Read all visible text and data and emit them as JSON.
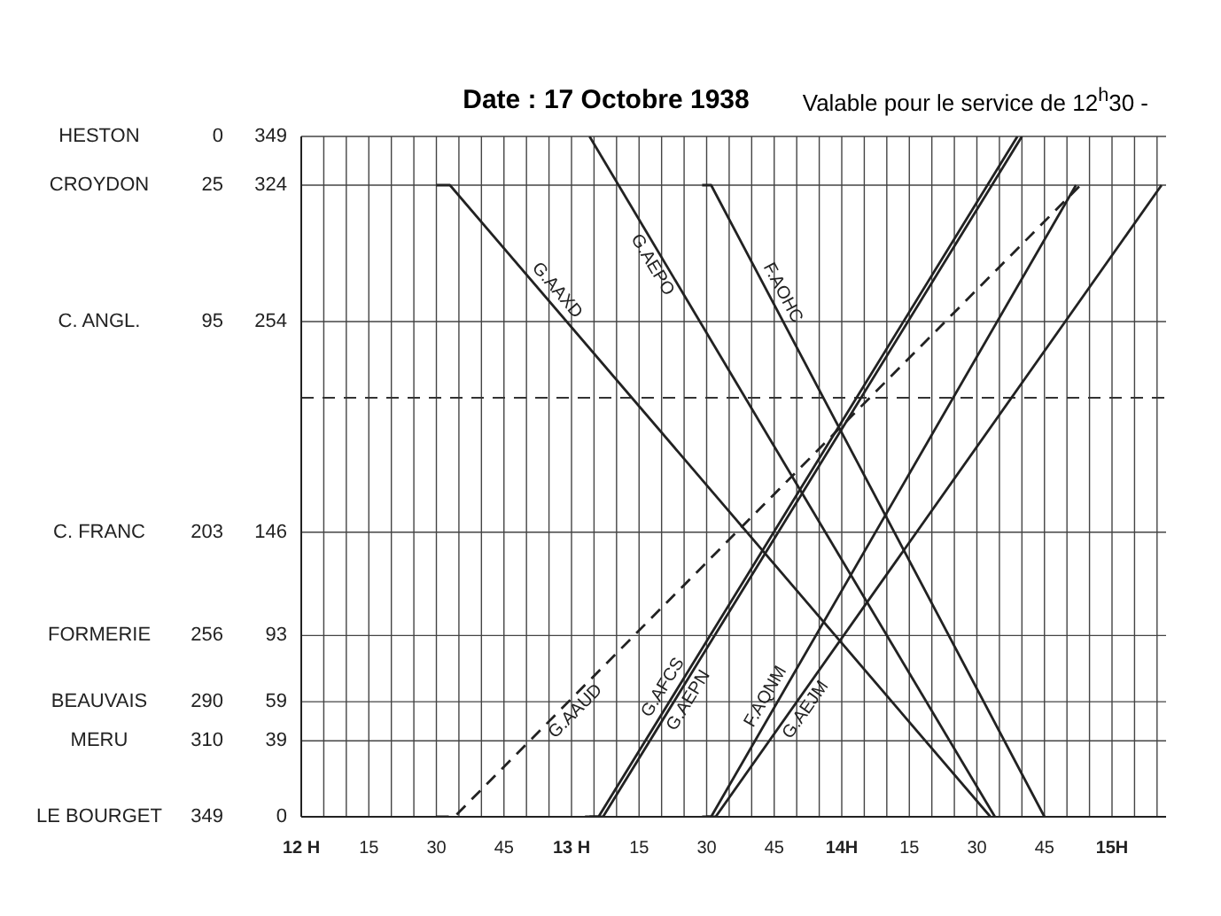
{
  "chart_data": {
    "type": "line",
    "title": "Date : 17 Octobre 1938",
    "subtitle": "Valable pour le service de 12$^{h}$30 -",
    "xlim": [
      "1938-10-17T12:00",
      "1938-10-17T15:12"
    ],
    "xticks": [
      {
        "value": "1938-10-17T12:00",
        "label": "12 H"
      },
      {
        "value": "1938-10-17T12:05",
        "label": null
      },
      {
        "value": "1938-10-17T12:10",
        "label": null
      },
      {
        "value": "1938-10-17T12:15",
        "label": "15"
      },
      {
        "value": "1938-10-17T12:20",
        "label": null
      },
      {
        "value": "1938-10-17T12:25",
        "label": null
      },
      {
        "value": "1938-10-17T12:30",
        "label": "30"
      },
      {
        "value": "1938-10-17T12:35",
        "label": null
      },
      {
        "value": "1938-10-17T12:40",
        "label": null
      },
      {
        "value": "1938-10-17T12:45",
        "label": "45"
      },
      {
        "value": "1938-10-17T12:50",
        "label": null
      },
      {
        "value": "1938-10-17T12:55",
        "label": null
      },
      {
        "value": "1938-10-17T13:00",
        "label": "13 H"
      },
      {
        "value": "1938-10-17T13:05",
        "label": null
      },
      {
        "value": "1938-10-17T13:10",
        "label": null
      },
      {
        "value": "1938-10-17T13:15",
        "label": "15"
      },
      {
        "value": "1938-10-17T13:20",
        "label": null
      },
      {
        "value": "1938-10-17T13:25",
        "label": null
      },
      {
        "value": "1938-10-17T13:30",
        "label": "30"
      },
      {
        "value": "1938-10-17T13:35",
        "label": null
      },
      {
        "value": "1938-10-17T13:40",
        "label": null
      },
      {
        "value": "1938-10-17T13:45",
        "label": "45"
      },
      {
        "value": "1938-10-17T13:50",
        "label": null
      },
      {
        "value": "1938-10-17T13:55",
        "label": null
      },
      {
        "value": "1938-10-17T14:00",
        "label": "14H"
      },
      {
        "value": "1938-10-17T14:05",
        "label": null
      },
      {
        "value": "1938-10-17T14:10",
        "label": null
      },
      {
        "value": "1938-10-17T14:15",
        "label": "15"
      },
      {
        "value": "1938-10-17T14:20",
        "label": null
      },
      {
        "value": "1938-10-17T14:25",
        "label": null
      },
      {
        "value": "1938-10-17T14:30",
        "label": "30"
      },
      {
        "value": "1938-10-17T14:35",
        "label": null
      },
      {
        "value": "1938-10-17T14:40",
        "label": null
      },
      {
        "value": "1938-10-17T14:45",
        "label": "45"
      },
      {
        "value": "1938-10-17T14:50",
        "label": null
      },
      {
        "value": "1938-10-17T14:55",
        "label": null
      },
      {
        "value": "1938-10-17T15:00",
        "label": "15H"
      },
      {
        "value": "1938-10-17T15:05",
        "label": null
      },
      {
        "value": "1938-10-17T15:10",
        "label": null
      }
    ],
    "ylim": [
      0,
      349
    ],
    "yticks": [
      0,
      39,
      59,
      93,
      146,
      254,
      324,
      349
    ],
    "y2lim": [
      349,
      0
    ],
    "y2ticks": [
      0,
      25,
      95,
      203,
      256,
      290,
      310,
      349
    ],
    "grid": true,
    "marker": "none",
    "annotations": [
      "HESTON",
      "CROYDON",
      "C. ANGL.",
      "C. FRANC",
      "FORMERIE",
      "BEAUVAIS",
      "MERU",
      "LE BOURGET"
    ],
    "ref_lines": [
      {
        "axis": "y",
        "value": 215,
        "label": null,
        "line_style": "dashed"
      }
    ],
    "series": [
      {
        "name": "G.AAXD",
        "color": "#222222",
        "x": [
          "1938-10-17T12:30",
          "1938-10-17T12:33",
          "1938-10-17T14:33"
        ],
        "values": [
          324,
          324,
          0
        ]
      },
      {
        "name": "G.AEPO",
        "color": "#222222",
        "x": [
          "1938-10-17T13:04",
          "1938-10-17T14:34"
        ],
        "values": [
          349,
          0
        ]
      },
      {
        "name": "F.AOHC",
        "color": "#222222",
        "x": [
          "1938-10-17T13:29",
          "1938-10-17T13:31",
          "1938-10-17T14:45"
        ],
        "values": [
          324,
          324,
          0
        ]
      },
      {
        "name": "G.AAUD",
        "color": "#222222",
        "line_style": "dashed",
        "x": [
          "1938-10-17T12:30",
          "1938-10-17T12:34",
          "1938-10-17T14:53"
        ],
        "values": [
          0,
          0,
          324
        ]
      },
      {
        "name": "G.AFCS",
        "color": "#222222",
        "x": [
          "1938-10-17T13:03",
          "1938-10-17T13:06",
          "1938-10-17T14:39"
        ],
        "values": [
          0,
          0,
          349
        ]
      },
      {
        "name": "G.AEPN",
        "color": "#222222",
        "x": [
          "1938-10-17T13:04",
          "1938-10-17T13:07",
          "1938-10-17T14:40"
        ],
        "values": [
          0,
          0,
          349
        ]
      },
      {
        "name": "F.AQNM",
        "color": "#222222",
        "x": [
          "1938-10-17T13:29",
          "1938-10-17T13:31",
          "1938-10-17T14:52"
        ],
        "values": [
          0,
          0,
          324
        ]
      },
      {
        "name": "G.AEJM",
        "color": "#222222",
        "x": [
          "1938-10-17T13:30",
          "1938-10-17T13:32",
          "1938-10-17T15:11"
        ],
        "values": [
          0,
          0,
          324
        ]
      }
    ]
  }
}
